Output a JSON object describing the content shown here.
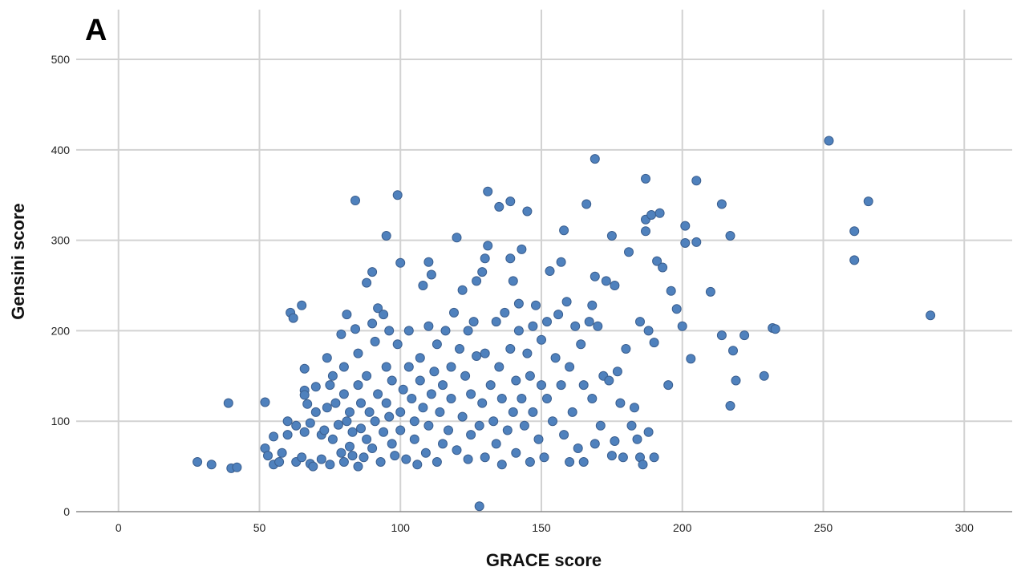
{
  "chart_data": {
    "type": "scatter",
    "panel_label": "A",
    "xlabel": "GRACE score",
    "ylabel": "Gensini score",
    "xlim": [
      -15,
      317
    ],
    "ylim": [
      0,
      555
    ],
    "x_ticks": [
      0,
      50,
      100,
      150,
      200,
      250,
      300
    ],
    "y_ticks": [
      0,
      100,
      200,
      300,
      400,
      500
    ],
    "grid": true,
    "colors": {
      "point": "#4f81bd",
      "point_edge": "#3b5f8f",
      "grid": "#d2d2d2"
    },
    "points": [
      [
        28,
        55
      ],
      [
        33,
        52
      ],
      [
        39,
        120
      ],
      [
        40,
        48
      ],
      [
        42,
        49
      ],
      [
        52,
        121
      ],
      [
        52,
        70
      ],
      [
        53,
        62
      ],
      [
        55,
        83
      ],
      [
        55,
        52
      ],
      [
        57,
        55
      ],
      [
        58,
        65
      ],
      [
        60,
        85
      ],
      [
        60,
        100
      ],
      [
        61,
        220
      ],
      [
        62,
        214
      ],
      [
        63,
        95
      ],
      [
        63,
        55
      ],
      [
        65,
        228
      ],
      [
        65,
        60
      ],
      [
        66,
        88
      ],
      [
        66,
        158
      ],
      [
        66,
        134
      ],
      [
        66,
        129
      ],
      [
        67,
        119
      ],
      [
        68,
        53
      ],
      [
        68,
        98
      ],
      [
        69,
        50
      ],
      [
        70,
        138
      ],
      [
        70,
        110
      ],
      [
        72,
        58
      ],
      [
        72,
        85
      ],
      [
        73,
        90
      ],
      [
        74,
        115
      ],
      [
        74,
        170
      ],
      [
        75,
        52
      ],
      [
        75,
        140
      ],
      [
        76,
        150
      ],
      [
        76,
        80
      ],
      [
        77,
        120
      ],
      [
        78,
        96
      ],
      [
        79,
        196
      ],
      [
        79,
        65
      ],
      [
        80,
        55
      ],
      [
        80,
        160
      ],
      [
        80,
        130
      ],
      [
        81,
        100
      ],
      [
        81,
        218
      ],
      [
        82,
        72
      ],
      [
        82,
        110
      ],
      [
        83,
        88
      ],
      [
        83,
        62
      ],
      [
        84,
        344
      ],
      [
        84,
        202
      ],
      [
        85,
        50
      ],
      [
        85,
        140
      ],
      [
        85,
        175
      ],
      [
        86,
        120
      ],
      [
        86,
        92
      ],
      [
        87,
        60
      ],
      [
        88,
        150
      ],
      [
        88,
        253
      ],
      [
        88,
        80
      ],
      [
        89,
        110
      ],
      [
        90,
        208
      ],
      [
        90,
        265
      ],
      [
        90,
        70
      ],
      [
        91,
        188
      ],
      [
        91,
        100
      ],
      [
        92,
        225
      ],
      [
        92,
        130
      ],
      [
        93,
        55
      ],
      [
        94,
        218
      ],
      [
        94,
        88
      ],
      [
        95,
        160
      ],
      [
        95,
        305
      ],
      [
        95,
        120
      ],
      [
        96,
        105
      ],
      [
        96,
        200
      ],
      [
        97,
        75
      ],
      [
        97,
        145
      ],
      [
        98,
        62
      ],
      [
        99,
        350
      ],
      [
        99,
        185
      ],
      [
        100,
        275
      ],
      [
        100,
        110
      ],
      [
        100,
        90
      ],
      [
        101,
        135
      ],
      [
        102,
        58
      ],
      [
        103,
        200
      ],
      [
        103,
        160
      ],
      [
        104,
        125
      ],
      [
        105,
        80
      ],
      [
        105,
        100
      ],
      [
        106,
        52
      ],
      [
        107,
        170
      ],
      [
        107,
        145
      ],
      [
        108,
        250
      ],
      [
        108,
        115
      ],
      [
        109,
        65
      ],
      [
        110,
        205
      ],
      [
        110,
        276
      ],
      [
        110,
        95
      ],
      [
        111,
        262
      ],
      [
        111,
        130
      ],
      [
        112,
        155
      ],
      [
        113,
        55
      ],
      [
        113,
        185
      ],
      [
        114,
        110
      ],
      [
        115,
        75
      ],
      [
        115,
        140
      ],
      [
        116,
        200
      ],
      [
        117,
        90
      ],
      [
        118,
        160
      ],
      [
        118,
        125
      ],
      [
        119,
        220
      ],
      [
        120,
        303
      ],
      [
        120,
        68
      ],
      [
        121,
        180
      ],
      [
        122,
        105
      ],
      [
        122,
        245
      ],
      [
        123,
        150
      ],
      [
        124,
        58
      ],
      [
        124,
        200
      ],
      [
        125,
        130
      ],
      [
        125,
        85
      ],
      [
        126,
        210
      ],
      [
        127,
        172
      ],
      [
        127,
        255
      ],
      [
        128,
        95
      ],
      [
        128,
        6
      ],
      [
        129,
        120
      ],
      [
        129,
        265
      ],
      [
        130,
        60
      ],
      [
        130,
        280
      ],
      [
        130,
        175
      ],
      [
        131,
        354
      ],
      [
        131,
        294
      ],
      [
        132,
        140
      ],
      [
        133,
        100
      ],
      [
        134,
        75
      ],
      [
        134,
        210
      ],
      [
        135,
        337
      ],
      [
        135,
        160
      ],
      [
        136,
        52
      ],
      [
        136,
        125
      ],
      [
        137,
        220
      ],
      [
        138,
        90
      ],
      [
        139,
        343
      ],
      [
        139,
        280
      ],
      [
        139,
        180
      ],
      [
        140,
        110
      ],
      [
        140,
        255
      ],
      [
        141,
        65
      ],
      [
        141,
        145
      ],
      [
        142,
        230
      ],
      [
        142,
        200
      ],
      [
        143,
        290
      ],
      [
        143,
        125
      ],
      [
        144,
        95
      ],
      [
        145,
        175
      ],
      [
        145,
        332
      ],
      [
        146,
        55
      ],
      [
        146,
        150
      ],
      [
        147,
        110
      ],
      [
        147,
        205
      ],
      [
        148,
        228
      ],
      [
        149,
        80
      ],
      [
        150,
        190
      ],
      [
        150,
        140
      ],
      [
        151,
        60
      ],
      [
        152,
        210
      ],
      [
        152,
        125
      ],
      [
        153,
        266
      ],
      [
        154,
        100
      ],
      [
        155,
        170
      ],
      [
        156,
        218
      ],
      [
        157,
        276
      ],
      [
        157,
        140
      ],
      [
        158,
        85
      ],
      [
        158,
        311
      ],
      [
        159,
        232
      ],
      [
        160,
        160
      ],
      [
        160,
        55
      ],
      [
        161,
        110
      ],
      [
        162,
        205
      ],
      [
        163,
        70
      ],
      [
        164,
        185
      ],
      [
        165,
        140
      ],
      [
        165,
        55
      ],
      [
        166,
        340
      ],
      [
        167,
        210
      ],
      [
        168,
        125
      ],
      [
        168,
        228
      ],
      [
        169,
        390
      ],
      [
        169,
        260
      ],
      [
        169,
        75
      ],
      [
        170,
        205
      ],
      [
        171,
        95
      ],
      [
        172,
        150
      ],
      [
        173,
        255
      ],
      [
        174,
        145
      ],
      [
        175,
        305
      ],
      [
        175,
        62
      ],
      [
        176,
        250
      ],
      [
        176,
        78
      ],
      [
        177,
        155
      ],
      [
        178,
        120
      ],
      [
        179,
        60
      ],
      [
        180,
        180
      ],
      [
        181,
        287
      ],
      [
        182,
        95
      ],
      [
        183,
        115
      ],
      [
        184,
        80
      ],
      [
        185,
        210
      ],
      [
        185,
        60
      ],
      [
        186,
        52
      ],
      [
        187,
        323
      ],
      [
        187,
        368
      ],
      [
        187,
        310
      ],
      [
        188,
        200
      ],
      [
        188,
        88
      ],
      [
        189,
        328
      ],
      [
        190,
        187
      ],
      [
        190,
        60
      ],
      [
        191,
        277
      ],
      [
        192,
        330
      ],
      [
        193,
        270
      ],
      [
        195,
        140
      ],
      [
        196,
        244
      ],
      [
        198,
        224
      ],
      [
        200,
        205
      ],
      [
        201,
        316
      ],
      [
        201,
        297
      ],
      [
        203,
        169
      ],
      [
        205,
        366
      ],
      [
        205,
        298
      ],
      [
        210,
        243
      ],
      [
        214,
        340
      ],
      [
        214,
        195
      ],
      [
        217,
        305
      ],
      [
        217,
        117
      ],
      [
        218,
        178
      ],
      [
        219,
        145
      ],
      [
        222,
        195
      ],
      [
        229,
        150
      ],
      [
        232,
        203
      ],
      [
        233,
        202
      ],
      [
        252,
        410
      ],
      [
        261,
        310
      ],
      [
        261,
        278
      ],
      [
        266,
        343
      ],
      [
        288,
        217
      ]
    ]
  }
}
